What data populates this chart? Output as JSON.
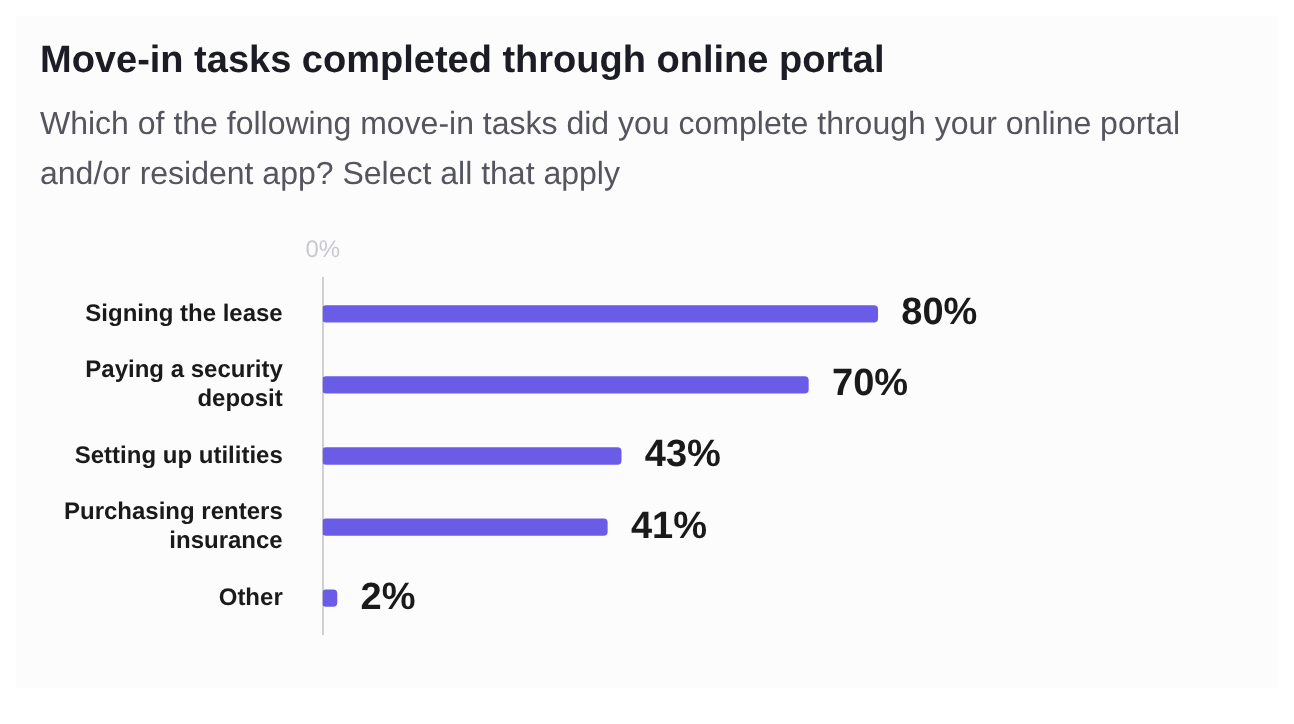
{
  "chart_data": {
    "type": "bar",
    "orientation": "horizontal",
    "title": "Move-in tasks completed through online portal",
    "subtitle": "Which of the following move-in tasks did you complete through your online portal and/or resident app? Select all that apply",
    "categories": [
      "Signing the lease",
      "Paying a security deposit",
      "Setting up utilities",
      "Purchasing renters insurance",
      "Other"
    ],
    "values": [
      80,
      70,
      43,
      41,
      2
    ],
    "color": "#6b5ce7",
    "annotations": [
      "0%"
    ],
    "value_labels": [
      "80%",
      "70%",
      "43%",
      "41%",
      "2%"
    ],
    "grid": false
  }
}
